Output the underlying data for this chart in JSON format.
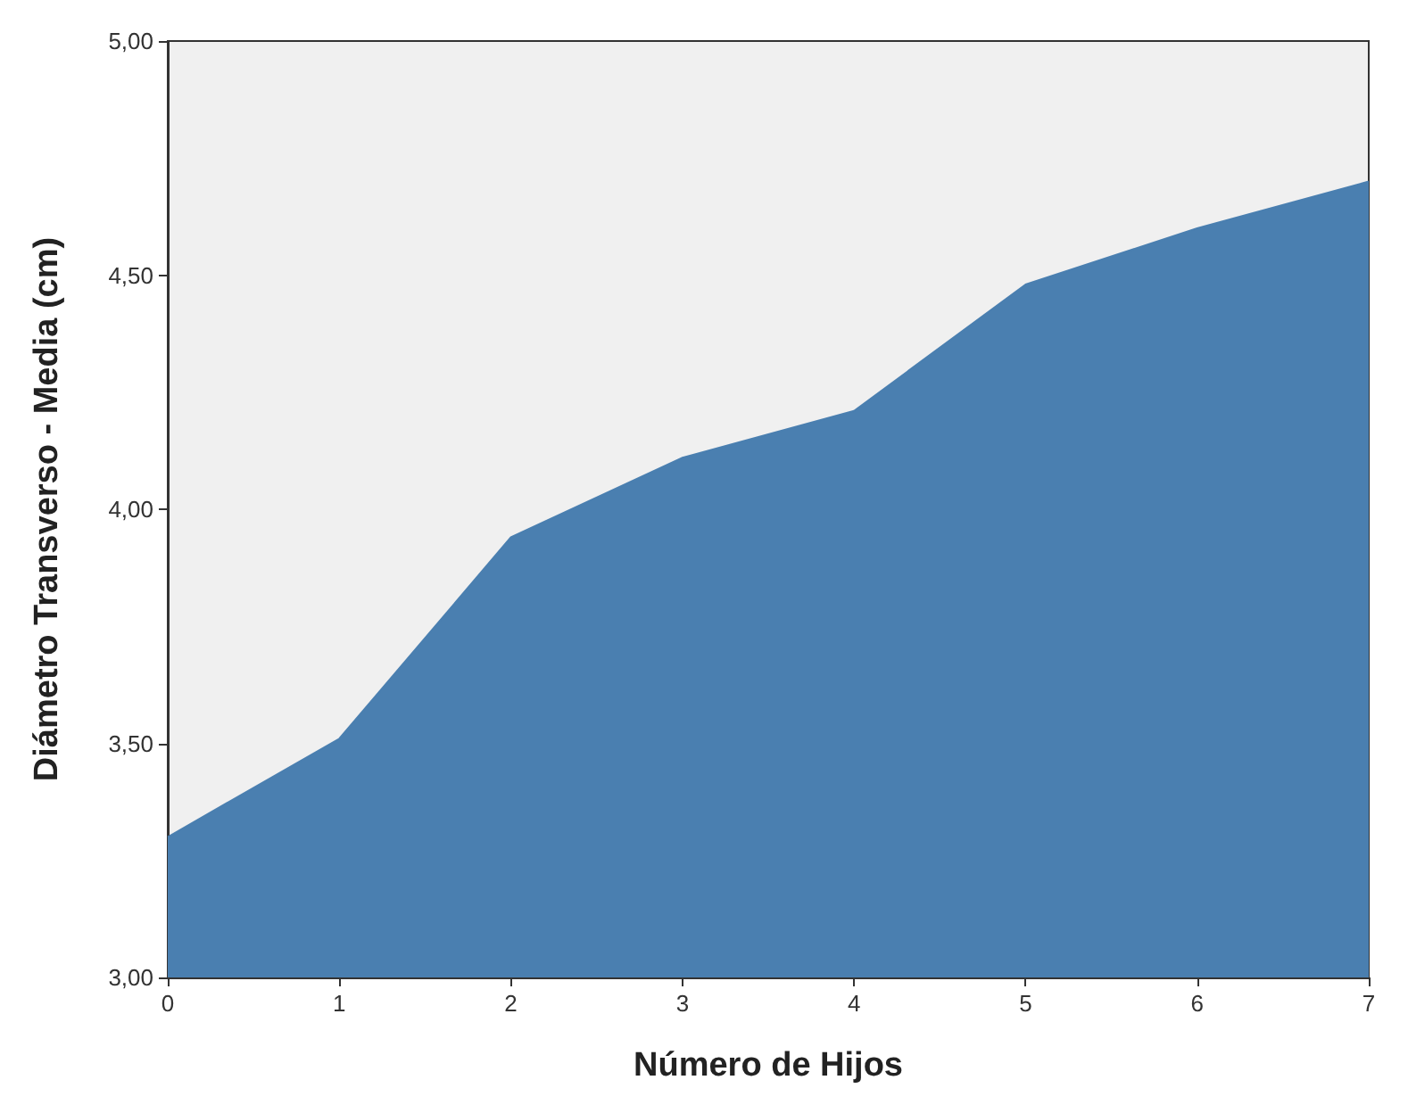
{
  "chart_data": {
    "type": "area",
    "xlabel": "Número de Hijos",
    "ylabel": "Diámetro Transverso - Media (cm)",
    "x": [
      0,
      1,
      2,
      3,
      4,
      5,
      6,
      7
    ],
    "series": [
      {
        "color": "#4a7fb0",
        "values": [
          3.3,
          3.51,
          3.94,
          4.11,
          4.21,
          4.48,
          4.6,
          4.7
        ]
      }
    ],
    "xlim": [
      0,
      7
    ],
    "xticks": [
      0,
      1,
      2,
      3,
      4,
      5,
      6,
      7
    ],
    "ylim": [
      3,
      5
    ],
    "yticks": [
      {
        "value": 3,
        "label": "3,00"
      },
      {
        "value": 3.5,
        "label": "3,50"
      },
      {
        "value": 4,
        "label": "4,00"
      },
      {
        "value": 4.5,
        "label": "4,50"
      },
      {
        "value": 5,
        "label": "5,00"
      }
    ],
    "grid": false,
    "marker": "none"
  }
}
